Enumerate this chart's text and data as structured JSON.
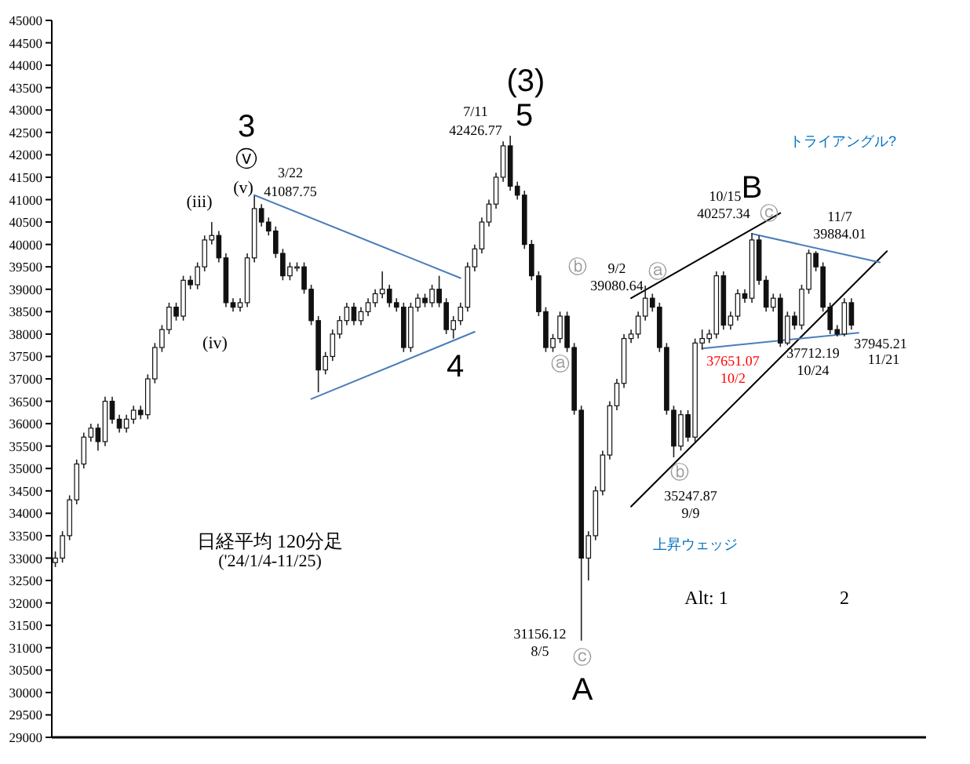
{
  "chart_data": {
    "type": "candlestick",
    "categories": [
      null,
      null,
      null,
      null,
      null,
      null,
      null,
      null,
      null,
      null,
      null,
      null,
      null,
      null,
      null,
      null,
      null,
      null,
      null,
      null,
      null,
      null,
      null,
      null,
      null,
      null,
      null,
      null,
      null,
      null,
      null,
      null,
      null,
      null,
      null,
      null,
      null,
      null,
      null,
      null,
      null,
      null,
      null,
      null,
      null,
      null,
      null,
      null,
      null,
      null,
      null,
      null,
      null,
      null,
      null,
      null,
      null,
      null,
      null,
      null,
      null,
      null,
      null,
      null,
      null,
      null,
      null,
      null,
      null,
      null,
      null,
      null,
      null,
      null,
      null,
      null,
      null,
      null,
      null,
      null,
      null,
      null,
      null,
      null,
      null,
      null,
      null,
      null,
      null,
      null,
      null,
      null,
      null,
      null,
      null,
      null,
      null,
      null,
      null,
      null,
      null,
      null,
      null,
      null,
      null,
      null,
      null,
      null,
      null,
      null,
      null,
      null,
      null,
      null,
      null,
      null,
      null,
      null,
      null,
      null,
      null,
      null,
      null
    ],
    "ohlc": [
      [
        32900,
        33150,
        32800,
        33000
      ],
      [
        33000,
        33600,
        32900,
        33500
      ],
      [
        33500,
        34400,
        33400,
        34300
      ],
      [
        34300,
        35200,
        34200,
        35100
      ],
      [
        35100,
        35800,
        35000,
        35700
      ],
      [
        35700,
        36000,
        35600,
        35900
      ],
      [
        35900,
        36000,
        35400,
        35600
      ],
      [
        35600,
        36600,
        35500,
        36500
      ],
      [
        36500,
        36600,
        36000,
        36100
      ],
      [
        36100,
        36200,
        35800,
        35900
      ],
      [
        35900,
        36200,
        35800,
        36100
      ],
      [
        36100,
        36400,
        36000,
        36300
      ],
      [
        36300,
        36400,
        36100,
        36200
      ],
      [
        36200,
        37100,
        36100,
        37000
      ],
      [
        37000,
        37800,
        36900,
        37700
      ],
      [
        37700,
        38200,
        37600,
        38100
      ],
      [
        38100,
        38700,
        38000,
        38600
      ],
      [
        38600,
        38700,
        38300,
        38400
      ],
      [
        38400,
        39300,
        38300,
        39200
      ],
      [
        39200,
        39300,
        39000,
        39100
      ],
      [
        39100,
        39600,
        39000,
        39500
      ],
      [
        39500,
        40200,
        39400,
        40100
      ],
      [
        40100,
        40500,
        40000,
        40200
      ],
      [
        40200,
        40300,
        39600,
        39700
      ],
      [
        39700,
        39800,
        38600,
        38700
      ],
      [
        38700,
        38800,
        38500,
        38600
      ],
      [
        38600,
        38800,
        38500,
        38700
      ],
      [
        38700,
        39800,
        38600,
        39700
      ],
      [
        39700,
        41087.75,
        39600,
        40800
      ],
      [
        40800,
        40900,
        40400,
        40500
      ],
      [
        40500,
        40600,
        40200,
        40300
      ],
      [
        40300,
        40400,
        39700,
        39800
      ],
      [
        39800,
        39900,
        39200,
        39300
      ],
      [
        39300,
        39600,
        39200,
        39500
      ],
      [
        39500,
        39600,
        39400,
        39500
      ],
      [
        39500,
        39600,
        38900,
        39000
      ],
      [
        39000,
        39100,
        38200,
        38300
      ],
      [
        38300,
        38400,
        36700,
        37200
      ],
      [
        37200,
        37600,
        37100,
        37500
      ],
      [
        37500,
        38100,
        37400,
        38000
      ],
      [
        38000,
        38400,
        37900,
        38300
      ],
      [
        38300,
        38700,
        38200,
        38600
      ],
      [
        38600,
        38700,
        38200,
        38300
      ],
      [
        38300,
        38600,
        38200,
        38500
      ],
      [
        38500,
        38800,
        38400,
        38700
      ],
      [
        38700,
        39000,
        38600,
        38900
      ],
      [
        38900,
        39400,
        38800,
        39000
      ],
      [
        39000,
        39100,
        38600,
        38700
      ],
      [
        38700,
        38800,
        38500,
        38600
      ],
      [
        38600,
        38700,
        37600,
        37700
      ],
      [
        37700,
        38700,
        37600,
        38600
      ],
      [
        38600,
        38900,
        38500,
        38800
      ],
      [
        38800,
        38900,
        38600,
        38700
      ],
      [
        38700,
        39100,
        38600,
        39000
      ],
      [
        39000,
        39300,
        38600,
        38700
      ],
      [
        38700,
        38800,
        38000,
        38100
      ],
      [
        38100,
        38400,
        37900,
        38300
      ],
      [
        38300,
        38700,
        38200,
        38600
      ],
      [
        38600,
        39600,
        38500,
        39500
      ],
      [
        39500,
        40000,
        39400,
        39900
      ],
      [
        39900,
        40600,
        39800,
        40500
      ],
      [
        40500,
        41000,
        40400,
        40900
      ],
      [
        40900,
        41600,
        40800,
        41500
      ],
      [
        41500,
        42300,
        41400,
        42200
      ],
      [
        42200,
        42426.77,
        41200,
        41300
      ],
      [
        41300,
        41400,
        41000,
        41100
      ],
      [
        41100,
        41200,
        39900,
        40000
      ],
      [
        40000,
        40100,
        39200,
        39300
      ],
      [
        39300,
        39400,
        38400,
        38500
      ],
      [
        38500,
        38600,
        37600,
        37700
      ],
      [
        37700,
        38000,
        37600,
        37900
      ],
      [
        37900,
        38500,
        37800,
        38400
      ],
      [
        38400,
        38500,
        37600,
        37700
      ],
      [
        37700,
        37800,
        36200,
        36300
      ],
      [
        36300,
        36400,
        31156.12,
        33000
      ],
      [
        33000,
        33600,
        32500,
        33500
      ],
      [
        33500,
        34600,
        33400,
        34500
      ],
      [
        34500,
        35400,
        34400,
        35300
      ],
      [
        35300,
        36500,
        35200,
        36400
      ],
      [
        36400,
        37000,
        36300,
        36900
      ],
      [
        36900,
        38000,
        36800,
        37900
      ],
      [
        37900,
        38100,
        37800,
        38000
      ],
      [
        38000,
        38500,
        37900,
        38400
      ],
      [
        38400,
        39080.64,
        38300,
        38800
      ],
      [
        38800,
        38900,
        38500,
        38600
      ],
      [
        38600,
        38700,
        37600,
        37700
      ],
      [
        37700,
        37800,
        36200,
        36300
      ],
      [
        36300,
        36400,
        35247.87,
        35500
      ],
      [
        35500,
        36300,
        35400,
        36200
      ],
      [
        36200,
        36300,
        35600,
        35700
      ],
      [
        35700,
        37900,
        35600,
        37800
      ],
      [
        37800,
        38100,
        37651.07,
        37900
      ],
      [
        37900,
        38100,
        37800,
        38000
      ],
      [
        38000,
        39400,
        37900,
        39300
      ],
      [
        39300,
        39400,
        38100,
        38200
      ],
      [
        38200,
        38500,
        38100,
        38400
      ],
      [
        38400,
        39000,
        38300,
        38900
      ],
      [
        38900,
        39000,
        38700,
        38800
      ],
      [
        38800,
        40257.34,
        38700,
        40100
      ],
      [
        40100,
        40200,
        39100,
        39200
      ],
      [
        39200,
        39300,
        38500,
        38600
      ],
      [
        38600,
        38900,
        38500,
        38800
      ],
      [
        38800,
        38900,
        37712.19,
        37800
      ],
      [
        37800,
        38500,
        37750,
        38400
      ],
      [
        38400,
        38500,
        38100,
        38200
      ],
      [
        38200,
        39100,
        38100,
        39000
      ],
      [
        39000,
        39884.01,
        38900,
        39800
      ],
      [
        39800,
        39850,
        39400,
        39500
      ],
      [
        39500,
        39600,
        38500,
        38600
      ],
      [
        38600,
        38700,
        38000,
        38100
      ],
      [
        38100,
        38200,
        37945.21,
        38000
      ],
      [
        38000,
        38800,
        37950,
        38700
      ],
      [
        38700,
        38800,
        38100,
        38200
      ],
      null,
      null,
      null,
      null,
      null,
      null,
      null,
      null,
      null,
      null
    ],
    "series": [
      {
        "type": "line",
        "color": "#4a7ebb",
        "values": [
          null,
          null,
          null,
          null,
          null,
          null,
          null,
          null,
          null,
          null,
          null,
          null,
          null,
          null,
          null,
          null,
          null,
          null,
          null,
          null,
          null,
          null,
          null,
          null,
          null,
          null,
          null,
          null,
          41100,
          null,
          null,
          null,
          null,
          null,
          null,
          null,
          null,
          null,
          null,
          null,
          null,
          null,
          null,
          null,
          null,
          null,
          null,
          null,
          null,
          null,
          null,
          null,
          null,
          null,
          null,
          null,
          null,
          39250,
          null,
          null,
          null,
          null,
          null,
          null,
          null,
          null,
          null,
          null,
          null,
          null,
          null,
          null,
          null,
          null,
          null,
          null,
          null,
          null,
          null,
          null,
          null,
          null,
          null,
          null,
          null,
          null,
          null,
          null,
          null,
          null,
          null,
          null,
          null,
          null,
          null,
          null,
          null,
          null,
          null,
          null,
          null,
          null,
          null,
          null,
          null,
          null,
          null,
          null,
          null,
          null,
          null,
          null,
          null,
          null,
          null,
          null,
          null,
          null,
          null,
          null,
          null,
          null,
          null
        ]
      },
      {
        "type": "line",
        "color": "#4a7ebb",
        "values": [
          null,
          null,
          null,
          null,
          null,
          null,
          null,
          null,
          null,
          null,
          null,
          null,
          null,
          null,
          null,
          null,
          null,
          null,
          null,
          null,
          null,
          null,
          null,
          null,
          null,
          null,
          null,
          null,
          null,
          null,
          null,
          null,
          null,
          null,
          null,
          null,
          36550,
          null,
          null,
          null,
          null,
          null,
          null,
          null,
          null,
          null,
          null,
          null,
          null,
          null,
          null,
          null,
          null,
          null,
          null,
          null,
          null,
          null,
          null,
          38050,
          null,
          null,
          null,
          null,
          null,
          null,
          null,
          null,
          null,
          null,
          null,
          null,
          null,
          null,
          null,
          null,
          null,
          null,
          null,
          null,
          null,
          null,
          null,
          null,
          null,
          null,
          null,
          null,
          null,
          null,
          null,
          null,
          null,
          null,
          null,
          null,
          null,
          null,
          null,
          null,
          null,
          null,
          null,
          null,
          null,
          null,
          null,
          null,
          null,
          null,
          null,
          null,
          null,
          null,
          null,
          null,
          null,
          null,
          null,
          null,
          null,
          null,
          null
        ]
      },
      {
        "type": "line",
        "color": "#000000",
        "values": [
          null,
          null,
          null,
          null,
          null,
          null,
          null,
          null,
          null,
          null,
          null,
          null,
          null,
          null,
          null,
          null,
          null,
          null,
          null,
          null,
          null,
          null,
          null,
          null,
          null,
          null,
          null,
          null,
          null,
          null,
          null,
          null,
          null,
          null,
          null,
          null,
          null,
          null,
          null,
          null,
          null,
          null,
          null,
          null,
          null,
          null,
          null,
          null,
          null,
          null,
          null,
          null,
          null,
          null,
          null,
          null,
          null,
          null,
          null,
          null,
          null,
          null,
          null,
          null,
          null,
          null,
          null,
          null,
          null,
          null,
          null,
          null,
          null,
          null,
          null,
          null,
          null,
          null,
          null,
          null,
          null,
          38800,
          null,
          null,
          null,
          null,
          null,
          null,
          null,
          null,
          null,
          null,
          null,
          null,
          null,
          null,
          null,
          null,
          null,
          null,
          null,
          null,
          40700,
          null,
          null,
          null,
          null,
          null,
          null,
          null,
          null,
          null,
          null,
          null,
          null,
          null,
          null,
          null,
          null,
          null,
          null,
          null,
          null
        ]
      },
      {
        "type": "line",
        "color": "#000000",
        "values": [
          null,
          null,
          null,
          null,
          null,
          null,
          null,
          null,
          null,
          null,
          null,
          null,
          null,
          null,
          null,
          null,
          null,
          null,
          null,
          null,
          null,
          null,
          null,
          null,
          null,
          null,
          null,
          null,
          null,
          null,
          null,
          null,
          null,
          null,
          null,
          null,
          null,
          null,
          null,
          null,
          null,
          null,
          null,
          null,
          null,
          null,
          null,
          null,
          null,
          null,
          null,
          null,
          null,
          null,
          null,
          null,
          null,
          null,
          null,
          null,
          null,
          null,
          null,
          null,
          null,
          null,
          null,
          null,
          null,
          null,
          null,
          null,
          null,
          null,
          null,
          null,
          null,
          null,
          null,
          null,
          null,
          34150,
          null,
          null,
          null,
          null,
          null,
          null,
          null,
          null,
          null,
          null,
          null,
          null,
          null,
          null,
          null,
          null,
          null,
          null,
          null,
          null,
          null,
          null,
          null,
          null,
          null,
          null,
          null,
          null,
          null,
          null,
          null,
          null,
          null,
          null,
          null,
          39850,
          null,
          null,
          null,
          null,
          null
        ]
      },
      {
        "type": "line",
        "color": "#4a7ebb",
        "values": [
          null,
          null,
          null,
          null,
          null,
          null,
          null,
          null,
          null,
          null,
          null,
          null,
          null,
          null,
          null,
          null,
          null,
          null,
          null,
          null,
          null,
          null,
          null,
          null,
          null,
          null,
          null,
          null,
          null,
          null,
          null,
          null,
          null,
          null,
          null,
          null,
          null,
          null,
          null,
          null,
          null,
          null,
          null,
          null,
          null,
          null,
          null,
          null,
          null,
          null,
          null,
          null,
          null,
          null,
          null,
          null,
          null,
          null,
          null,
          null,
          null,
          null,
          null,
          null,
          null,
          null,
          null,
          null,
          null,
          null,
          null,
          null,
          null,
          null,
          null,
          null,
          null,
          null,
          null,
          null,
          null,
          null,
          null,
          null,
          null,
          null,
          null,
          null,
          null,
          null,
          null,
          null,
          null,
          null,
          null,
          null,
          null,
          null,
          40240,
          null,
          null,
          null,
          null,
          null,
          null,
          null,
          null,
          null,
          null,
          null,
          null,
          null,
          null,
          null,
          null,
          null,
          39600,
          null,
          null,
          null,
          null,
          null,
          null
        ]
      },
      {
        "type": "line",
        "color": "#4a7ebb",
        "values": [
          null,
          null,
          null,
          null,
          null,
          null,
          null,
          null,
          null,
          null,
          null,
          null,
          null,
          null,
          null,
          null,
          null,
          null,
          null,
          null,
          null,
          null,
          null,
          null,
          null,
          null,
          null,
          null,
          null,
          null,
          null,
          null,
          null,
          null,
          null,
          null,
          null,
          null,
          null,
          null,
          null,
          null,
          null,
          null,
          null,
          null,
          null,
          null,
          null,
          null,
          null,
          null,
          null,
          null,
          null,
          null,
          null,
          null,
          null,
          null,
          null,
          null,
          null,
          null,
          null,
          null,
          null,
          null,
          null,
          null,
          null,
          null,
          null,
          null,
          null,
          null,
          null,
          null,
          null,
          null,
          null,
          null,
          null,
          null,
          null,
          null,
          null,
          null,
          null,
          null,
          null,
          37680,
          null,
          null,
          null,
          null,
          null,
          null,
          null,
          null,
          null,
          null,
          null,
          null,
          null,
          null,
          null,
          null,
          null,
          null,
          null,
          null,
          null,
          38030,
          null,
          null,
          null,
          null,
          null,
          null,
          null,
          null,
          null
        ]
      }
    ],
    "ylim": [
      29000,
      45000
    ],
    "yticks": [
      29000,
      29500,
      30000,
      30500,
      31000,
      31500,
      32000,
      32500,
      33000,
      33500,
      34000,
      34500,
      35000,
      35500,
      36000,
      36500,
      37000,
      37500,
      38000,
      38500,
      39000,
      39500,
      40000,
      40500,
      41000,
      41500,
      42000,
      42500,
      43000,
      43500,
      44000,
      44500,
      45000
    ],
    "tick_labels": "y",
    "annotations": [
      "3",
      "ⓥ",
      "(v)",
      "3/22",
      "41087.75",
      "(iii)",
      "(iv)",
      "(3)",
      "5",
      "7/11",
      "42426.77",
      "4",
      "ⓑ",
      "ⓐ",
      "9/2",
      "39080.64",
      "ⓐ",
      "B",
      "10/15",
      "40257.34",
      "ⓒ",
      "11/7",
      "39884.01",
      "トライアングル?",
      "37651.07",
      "10/2",
      "37712.19",
      "10/24",
      "37945.21",
      "11/21",
      "ⓑ",
      "35247.87",
      "9/9",
      "上昇ウェッジ",
      "Alt: 1",
      "2",
      "31156.12",
      "8/5",
      "ⓒ",
      "A",
      "日経平均 120分足",
      "('24/1/4-11/25)"
    ]
  }
}
